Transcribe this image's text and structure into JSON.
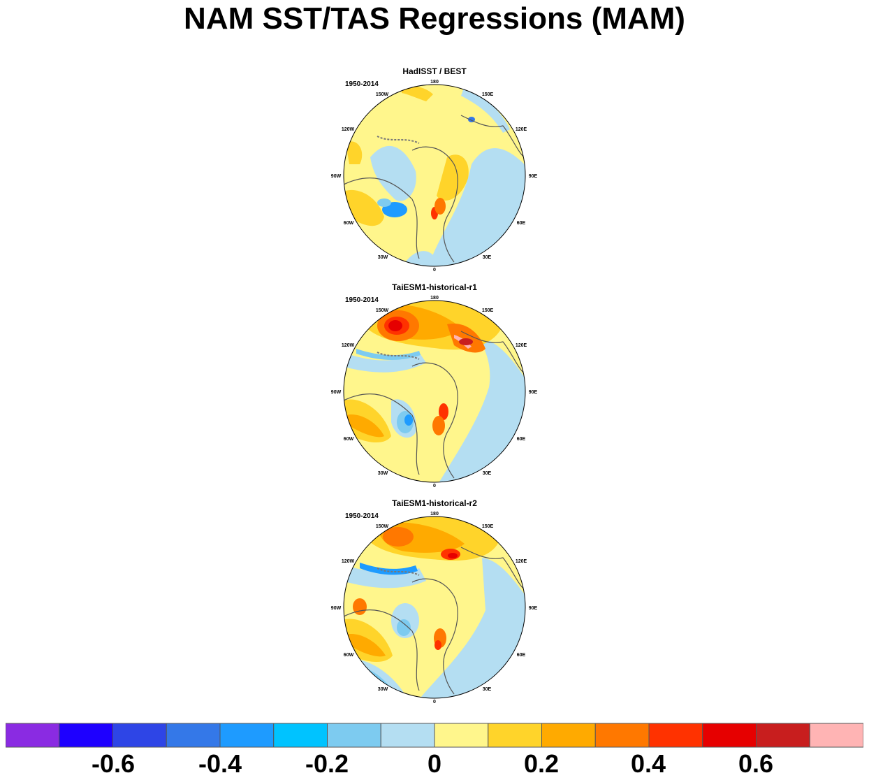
{
  "title": "NAM SST/TAS Regressions (MAM)",
  "lon_labels": [
    "180",
    "150E",
    "120E",
    "90E",
    "60E",
    "30E",
    "0",
    "30W",
    "60W",
    "90W",
    "120W",
    "150W"
  ],
  "panels": [
    {
      "title": "HadISST / BEST",
      "period": "1950-2014"
    },
    {
      "title": "TaiESM1-historical-r1",
      "period": "1950-2014"
    },
    {
      "title": "TaiESM1-historical-r2",
      "period": "1950-2014"
    }
  ],
  "colorbar": {
    "colors": [
      "#8a2be2",
      "#1e00ff",
      "#2e45e6",
      "#3478e8",
      "#1e9bff",
      "#00c3ff",
      "#7dcbf0",
      "#b4def2",
      "#fff68c",
      "#ffd42a",
      "#ffaa00",
      "#ff7800",
      "#ff3200",
      "#e60000",
      "#c81e1e",
      "#ffb4b4"
    ],
    "tick_labels": [
      "-0.6",
      "-0.4",
      "-0.2",
      "0",
      "0.2",
      "0.4",
      "0.6"
    ]
  }
}
